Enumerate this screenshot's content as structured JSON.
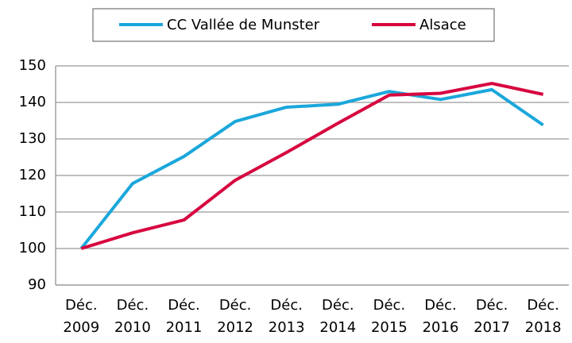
{
  "chart_data": {
    "type": "line",
    "categories": [
      "Déc. 2009",
      "Déc. 2010",
      "Déc. 2011",
      "Déc. 2012",
      "Déc. 2013",
      "Déc. 2014",
      "Déc. 2015",
      "Déc. 2016",
      "Déc. 2017",
      "Déc. 2018"
    ],
    "series": [
      {
        "name": "CC Vallée de Munster",
        "color": "#1aa7db",
        "values": [
          100,
          117.8,
          125.2,
          134.8,
          138.7,
          139.5,
          143,
          140.8,
          143.5,
          133.8
        ]
      },
      {
        "name": "Alsace",
        "color": "#d7063f",
        "values": [
          100,
          104.3,
          107.8,
          118.7,
          126.3,
          134.3,
          142,
          142.5,
          145.2,
          142.2
        ]
      }
    ],
    "ylim": [
      90,
      150
    ],
    "yticks": [
      90,
      100,
      110,
      120,
      130,
      140,
      150
    ],
    "grid": true
  }
}
